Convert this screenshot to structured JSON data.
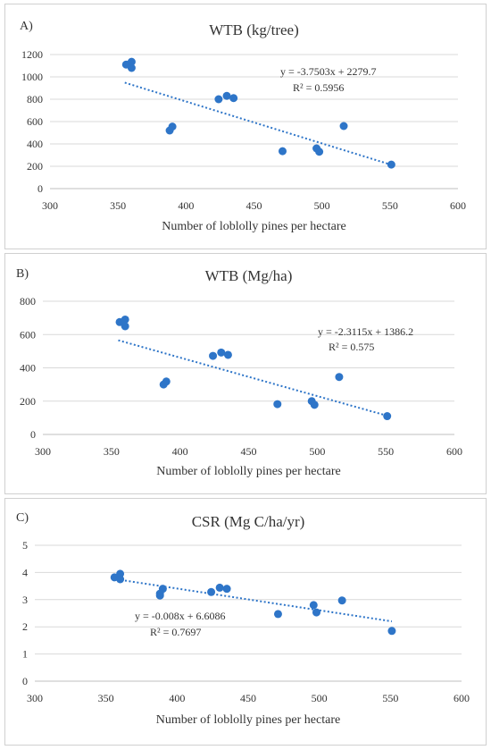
{
  "chart_data": [
    {
      "type": "scatter",
      "panel_label": "A)",
      "title": "WTB (kg/tree)",
      "xlabel": "Number of loblolly pines per hectare",
      "ylabel": "",
      "xlim": [
        300,
        600
      ],
      "ylim": [
        0,
        1200
      ],
      "xticks": [
        "300",
        "350",
        "400",
        "450",
        "500",
        "550",
        "600"
      ],
      "yticks": [
        "0",
        "200",
        "400",
        "600",
        "800",
        "1000",
        "1200"
      ],
      "points": [
        {
          "x": 356,
          "y": 1110
        },
        {
          "x": 360,
          "y": 1135
        },
        {
          "x": 360,
          "y": 1080
        },
        {
          "x": 388,
          "y": 520
        },
        {
          "x": 390,
          "y": 555
        },
        {
          "x": 424,
          "y": 800
        },
        {
          "x": 430,
          "y": 830
        },
        {
          "x": 435,
          "y": 810
        },
        {
          "x": 471,
          "y": 335
        },
        {
          "x": 496,
          "y": 360
        },
        {
          "x": 498,
          "y": 330
        },
        {
          "x": 516,
          "y": 560
        },
        {
          "x": 551,
          "y": 215
        }
      ],
      "trendline": {
        "slope": -3.7503,
        "intercept": 2279.7,
        "x_range": [
          355,
          551
        ]
      },
      "equation": "y = -3.7503x + 2279.7",
      "r2": "R² = 0.5956",
      "grid": true,
      "marker_color": "#2e75c8",
      "trend_color": "#2e75c8"
    },
    {
      "type": "scatter",
      "panel_label": "B)",
      "title": "WTB (Mg/ha)",
      "xlabel": "Number of loblolly pines per hectare",
      "ylabel": "",
      "xlim": [
        300,
        600
      ],
      "ylim": [
        0,
        800
      ],
      "xticks": [
        "300",
        "350",
        "400",
        "450",
        "500",
        "550",
        "600"
      ],
      "yticks": [
        "0",
        "200",
        "400",
        "600",
        "800"
      ],
      "points": [
        {
          "x": 356,
          "y": 675
        },
        {
          "x": 360,
          "y": 690
        },
        {
          "x": 360,
          "y": 650
        },
        {
          "x": 388,
          "y": 300
        },
        {
          "x": 390,
          "y": 318
        },
        {
          "x": 424,
          "y": 472
        },
        {
          "x": 430,
          "y": 492
        },
        {
          "x": 435,
          "y": 478
        },
        {
          "x": 471,
          "y": 182
        },
        {
          "x": 496,
          "y": 200
        },
        {
          "x": 498,
          "y": 178
        },
        {
          "x": 516,
          "y": 345
        },
        {
          "x": 551,
          "y": 110
        }
      ],
      "trendline": {
        "slope": -2.3115,
        "intercept": 1386.2,
        "x_range": [
          355,
          551
        ]
      },
      "equation": "y = -2.3115x + 1386.2",
      "r2": "R² = 0.575",
      "grid": true,
      "marker_color": "#2e75c8",
      "trend_color": "#2e75c8"
    },
    {
      "type": "scatter",
      "panel_label": "C)",
      "title": "CSR (Mg C/ha/yr)",
      "xlabel": "Number of loblolly pines per hectare",
      "ylabel": "",
      "xlim": [
        300,
        600
      ],
      "ylim": [
        0,
        5
      ],
      "xticks": [
        "300",
        "350",
        "400",
        "450",
        "500",
        "550",
        "600"
      ],
      "yticks": [
        "0",
        "1",
        "2",
        "3",
        "4",
        "5"
      ],
      "points": [
        {
          "x": 356,
          "y": 3.82
        },
        {
          "x": 360,
          "y": 3.95
        },
        {
          "x": 360,
          "y": 3.75
        },
        {
          "x": 388,
          "y": 3.15
        },
        {
          "x": 390,
          "y": 3.4
        },
        {
          "x": 388,
          "y": 3.22
        },
        {
          "x": 424,
          "y": 3.28
        },
        {
          "x": 430,
          "y": 3.44
        },
        {
          "x": 435,
          "y": 3.4
        },
        {
          "x": 471,
          "y": 2.47
        },
        {
          "x": 496,
          "y": 2.8
        },
        {
          "x": 498,
          "y": 2.53
        },
        {
          "x": 516,
          "y": 2.97
        },
        {
          "x": 551,
          "y": 1.85
        }
      ],
      "trendline": {
        "slope": -0.008,
        "intercept": 6.6086,
        "x_range": [
          355,
          551
        ]
      },
      "equation": "y = -0.008x + 6.6086",
      "r2": "R² = 0.7697",
      "grid": true,
      "marker_color": "#2e75c8",
      "trend_color": "#2e75c8"
    }
  ]
}
